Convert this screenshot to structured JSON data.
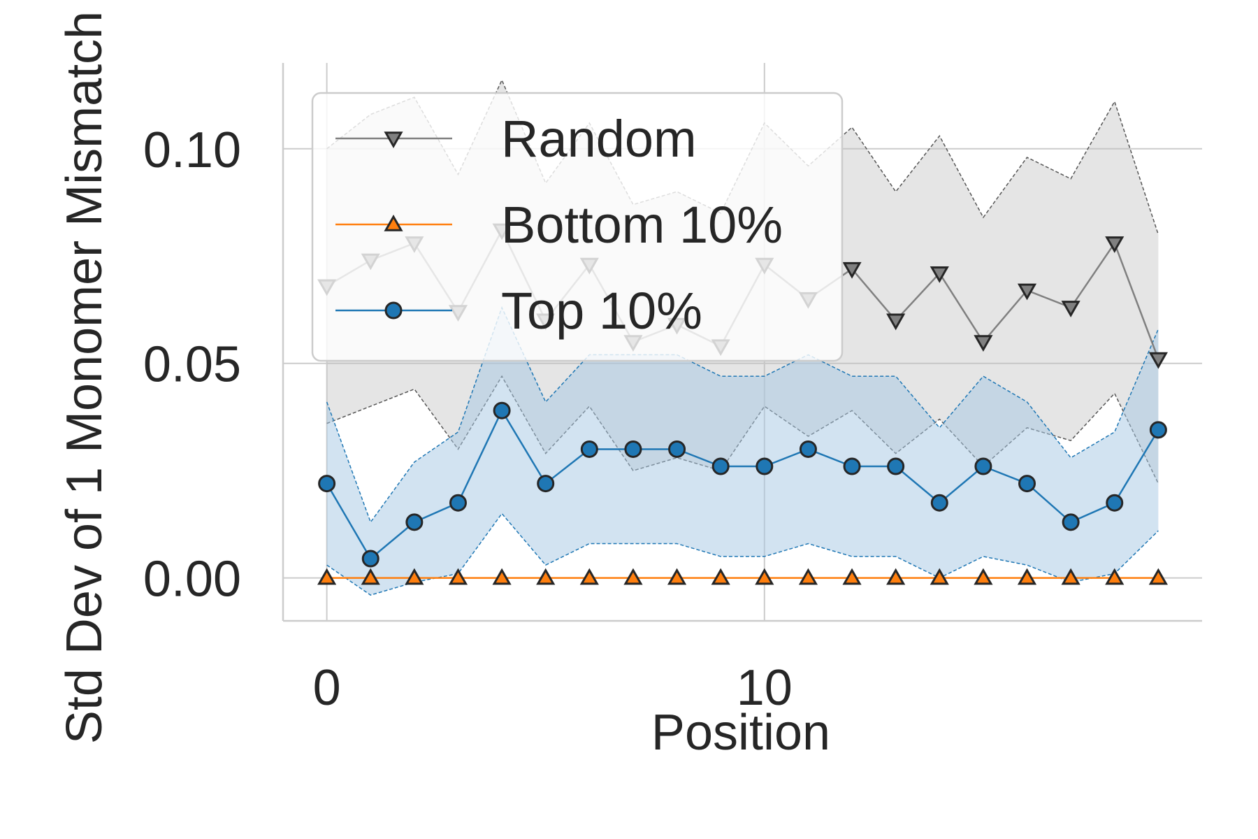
{
  "chart_data": {
    "type": "line",
    "title": "",
    "xlabel": "Position",
    "ylabel": "Std Dev of 1 Monomer Mismatch",
    "xlim": [
      -1,
      20
    ],
    "ylim": [
      -0.01,
      0.12
    ],
    "xticks": [
      0,
      10
    ],
    "xtick_labels": [
      "0",
      "10"
    ],
    "yticks": [
      0.0,
      0.05,
      0.1
    ],
    "ytick_labels": [
      "0.00",
      "0.05",
      "0.10"
    ],
    "grid": true,
    "legend_position": "upper-left",
    "x": [
      0,
      1,
      2,
      3,
      4,
      5,
      6,
      7,
      8,
      9,
      10,
      11,
      12,
      13,
      14,
      15,
      16,
      17,
      18,
      19
    ],
    "series": [
      {
        "name": "Random",
        "color": "#808080",
        "marker": "triangle-down",
        "values": [
          0.068,
          0.074,
          0.078,
          0.062,
          0.081,
          0.06,
          0.073,
          0.055,
          0.059,
          0.054,
          0.073,
          0.065,
          0.072,
          0.06,
          0.071,
          0.055,
          0.067,
          0.063,
          0.078,
          0.051
        ],
        "upper": [
          0.1,
          0.108,
          0.112,
          0.094,
          0.116,
          0.092,
          0.106,
          0.087,
          0.09,
          0.085,
          0.106,
          0.096,
          0.105,
          0.09,
          0.103,
          0.084,
          0.098,
          0.093,
          0.111,
          0.08
        ],
        "lower": [
          0.036,
          0.04,
          0.044,
          0.03,
          0.047,
          0.029,
          0.04,
          0.025,
          0.028,
          0.025,
          0.04,
          0.033,
          0.039,
          0.029,
          0.037,
          0.026,
          0.035,
          0.032,
          0.043,
          0.022
        ]
      },
      {
        "name": "Bottom 10%",
        "color": "#ff7f0e",
        "marker": "triangle-up",
        "values": [
          0,
          0,
          0,
          0,
          0,
          0,
          0,
          0,
          0,
          0,
          0,
          0,
          0,
          0,
          0,
          0,
          0,
          0,
          0,
          0
        ]
      },
      {
        "name": "Top 10%",
        "color": "#1f77b4",
        "marker": "circle",
        "values": [
          0.022,
          0.0045,
          0.013,
          0.0175,
          0.039,
          0.022,
          0.03,
          0.03,
          0.03,
          0.026,
          0.026,
          0.03,
          0.026,
          0.026,
          0.0175,
          0.026,
          0.022,
          0.013,
          0.0175,
          0.0345
        ],
        "upper": [
          0.041,
          0.013,
          0.027,
          0.034,
          0.063,
          0.041,
          0.052,
          0.052,
          0.052,
          0.047,
          0.047,
          0.052,
          0.047,
          0.047,
          0.035,
          0.047,
          0.041,
          0.028,
          0.034,
          0.058
        ],
        "lower": [
          0.003,
          -0.004,
          -0.001,
          0.001,
          0.015,
          0.003,
          0.008,
          0.008,
          0.008,
          0.005,
          0.005,
          0.008,
          0.005,
          0.005,
          0.0,
          0.005,
          0.003,
          -0.001,
          0.001,
          0.011
        ]
      }
    ]
  }
}
